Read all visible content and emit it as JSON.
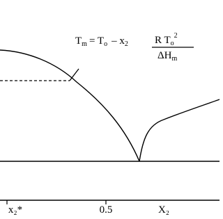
{
  "equation": {
    "lhs": "T",
    "lhs_sub": "m",
    "eq": "= T",
    "eq_sub": "o",
    "minus": "–  x",
    "minus_sub": "2",
    "numerator": "R T",
    "numerator_sub": "o",
    "numerator_sup": "2",
    "denominator": "ΔH",
    "denominator_sub": "m"
  },
  "axis": {
    "ticks": [
      "x₂*",
      "0.5"
    ],
    "title": "X₂"
  }
}
